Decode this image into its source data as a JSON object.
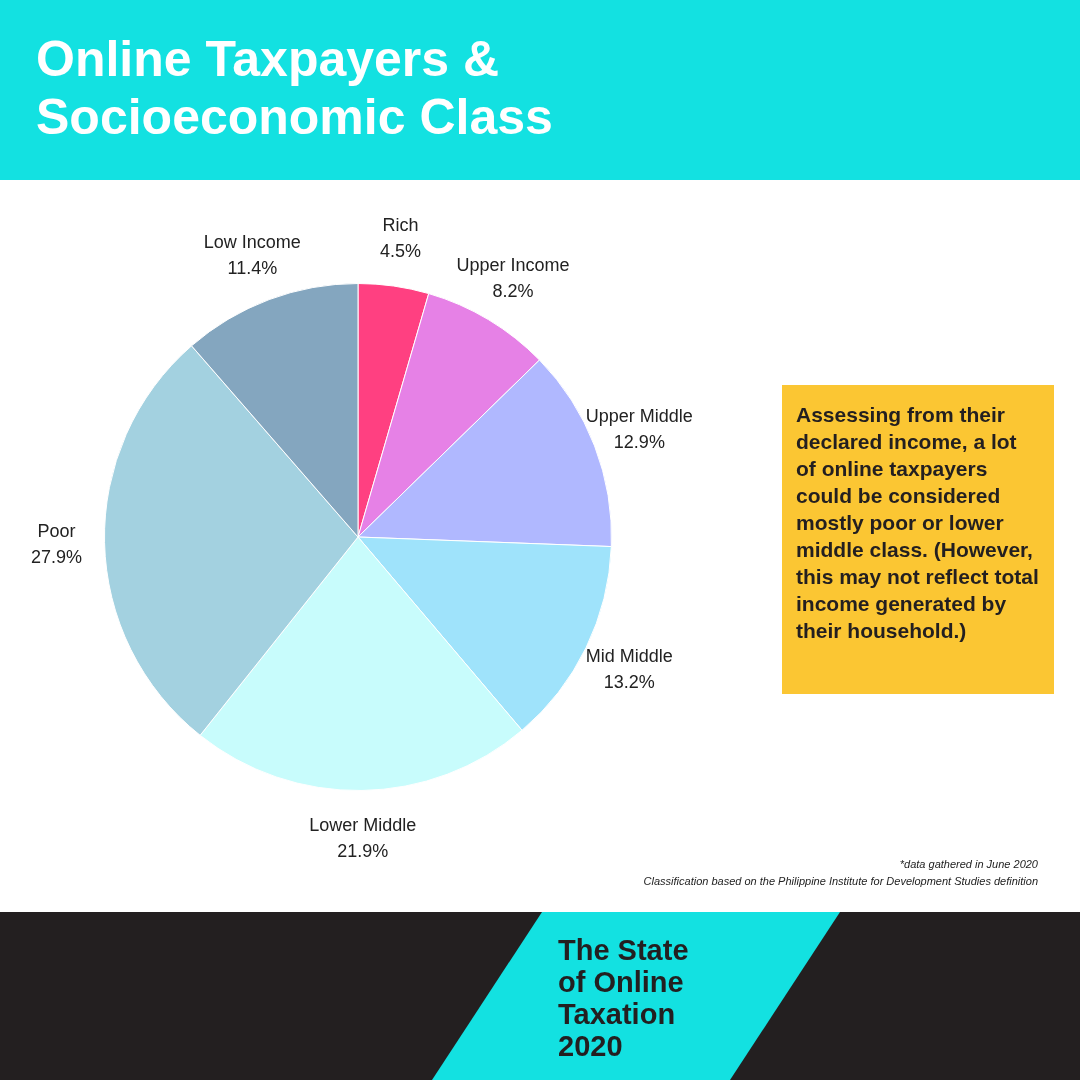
{
  "chart_data": {
    "type": "pie",
    "title": "Online Taxpayers & Socioeconomic Class",
    "categories": [
      "Rich",
      "Upper Income",
      "Upper Middle",
      "Mid Middle",
      "Lower Middle",
      "Poor",
      "Low Income"
    ],
    "values": [
      4.5,
      8.2,
      12.9,
      13.2,
      21.9,
      27.9,
      11.4
    ],
    "value_labels": [
      "4.5%",
      "8.2%",
      "12.9%",
      "13.2%",
      "21.9%",
      "27.9%",
      "11.4%"
    ],
    "colors": [
      "#ff4081",
      "#e681e6",
      "#b0b8ff",
      "#9fe3fb",
      "#c8fcfc",
      "#a3d1e0",
      "#84a6bf"
    ],
    "legend": false,
    "annotations": [
      "Assessing from their declared income, a lot of online taxpayers could be considered mostly poor or lower middle class. (However, this may not reflect total income generated by their household.)",
      "*data gathered  in June 2020",
      "Classification based on the Philippine Institute for Development Studies definition",
      "The State of Online Taxation 2020"
    ]
  }
}
